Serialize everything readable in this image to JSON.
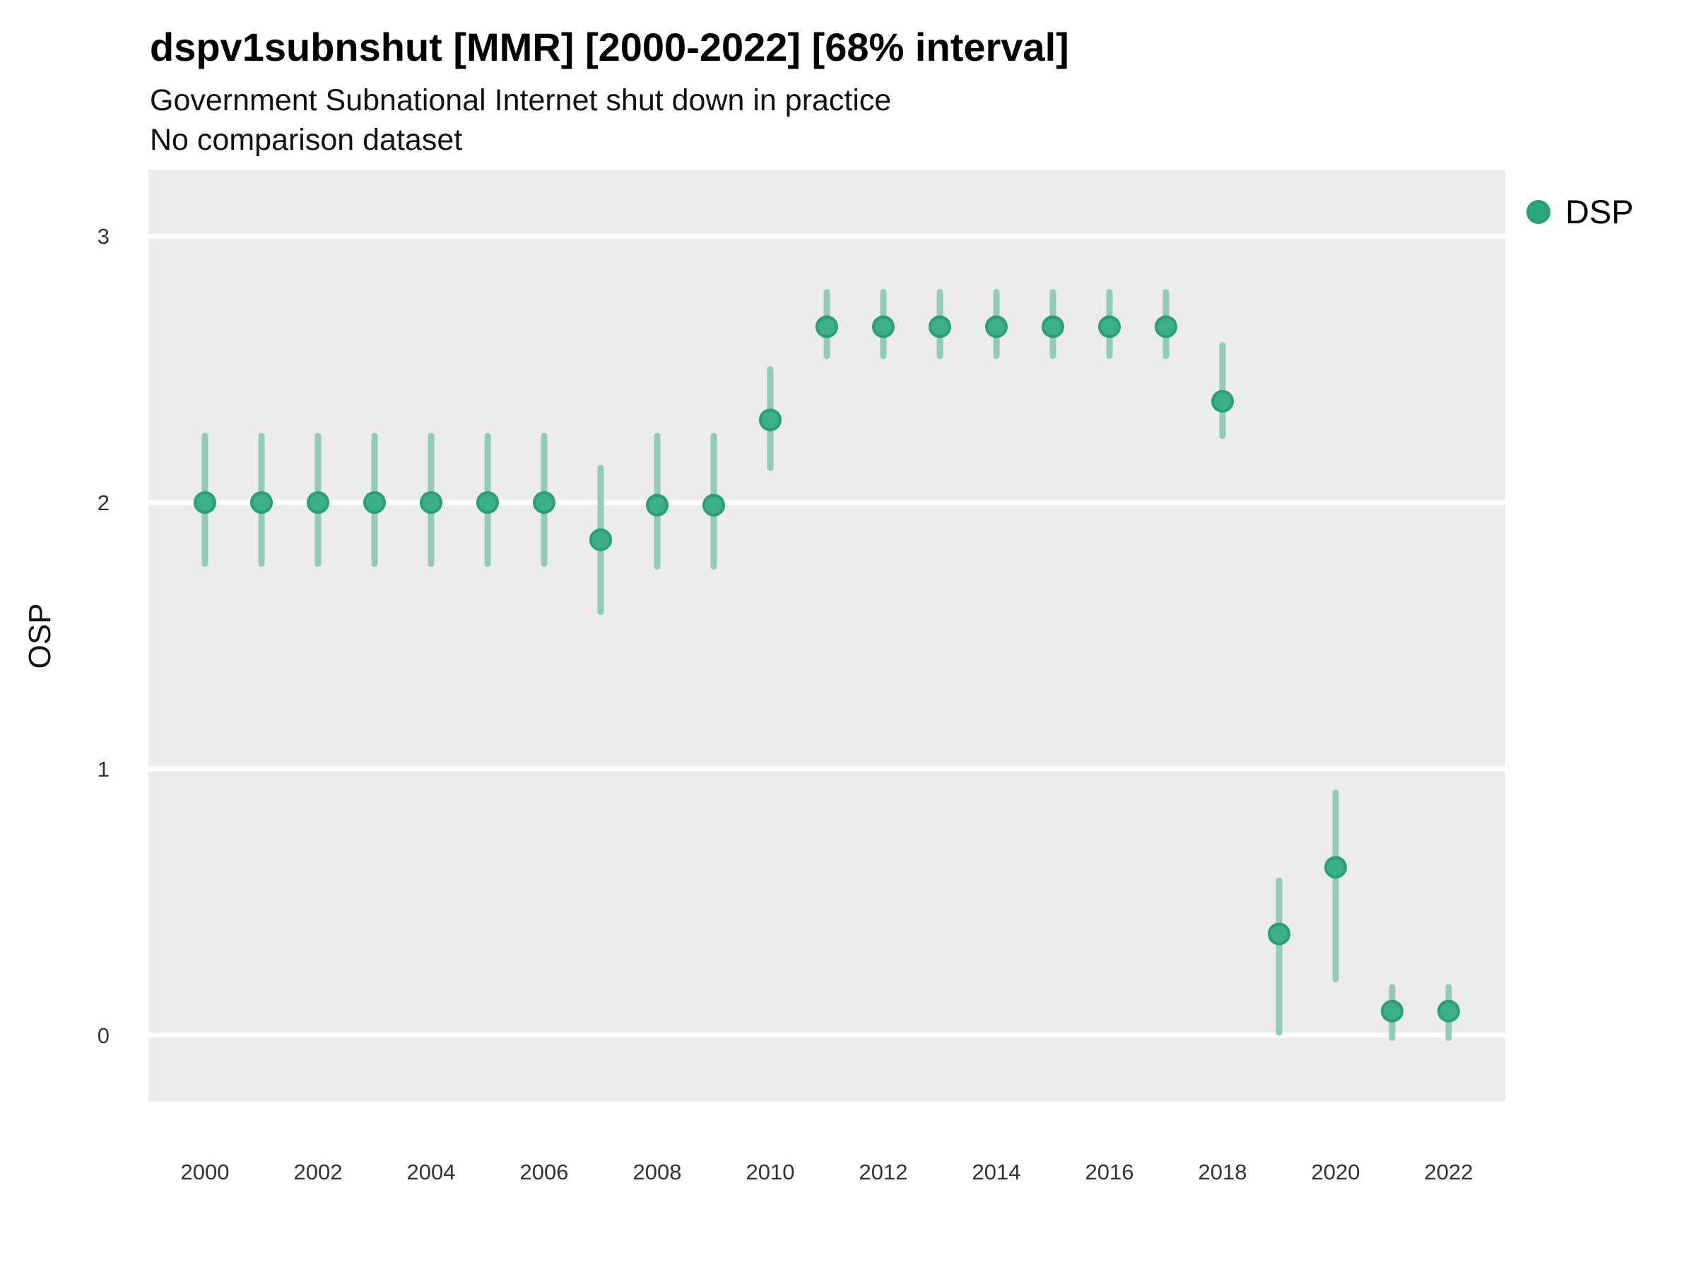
{
  "page": {
    "title": "dspv1subnshut [MMR] [2000-2022] [68% interval]",
    "subtitle1": "Government Subnational Internet shut down in practice",
    "subtitle2": "No comparison dataset"
  },
  "legend": {
    "label": "DSP"
  },
  "chart_data": {
    "type": "scatter",
    "title": "dspv1subnshut [MMR] [2000-2022] [68% interval]",
    "subtitle": "Government Subnational Internet shut down in practice",
    "note": "No comparison dataset",
    "interval_level": "68%",
    "xlabel": "",
    "ylabel": "OSP",
    "xlim": [
      1999,
      2023
    ],
    "ylim": [
      -0.25,
      3.25
    ],
    "x_ticks": [
      2000,
      2002,
      2004,
      2006,
      2008,
      2010,
      2012,
      2014,
      2016,
      2018,
      2020,
      2022
    ],
    "y_ticks": [
      0,
      1,
      2,
      3
    ],
    "grid": "major horizontal white lines on grey panel",
    "legend_position": "right-top",
    "series": [
      {
        "name": "DSP",
        "x": [
          2000,
          2001,
          2002,
          2003,
          2004,
          2005,
          2006,
          2007,
          2008,
          2009,
          2010,
          2011,
          2012,
          2013,
          2014,
          2015,
          2016,
          2017,
          2018,
          2019,
          2020,
          2021,
          2022
        ],
        "values": [
          2.0,
          2.0,
          2.0,
          2.0,
          2.0,
          2.0,
          2.0,
          1.86,
          1.99,
          1.99,
          2.31,
          2.66,
          2.66,
          2.66,
          2.66,
          2.66,
          2.66,
          2.66,
          2.38,
          0.38,
          0.63,
          0.09,
          0.09
        ],
        "interval_low": [
          1.77,
          1.77,
          1.77,
          1.77,
          1.77,
          1.77,
          1.77,
          1.59,
          1.76,
          1.76,
          2.13,
          2.55,
          2.55,
          2.55,
          2.55,
          2.55,
          2.55,
          2.55,
          2.25,
          0.01,
          0.21,
          -0.01,
          -0.01
        ],
        "interval_high": [
          2.25,
          2.25,
          2.25,
          2.25,
          2.25,
          2.25,
          2.25,
          2.13,
          2.25,
          2.25,
          2.5,
          2.79,
          2.79,
          2.79,
          2.79,
          2.79,
          2.79,
          2.79,
          2.59,
          0.58,
          0.91,
          0.18,
          0.18
        ]
      }
    ],
    "colors": {
      "point_fill": "#3cae88",
      "point_stroke": "#27a075",
      "interval_bar": "#93ccb4",
      "panel_bg": "#ebebeb",
      "grid_line": "#ffffff",
      "legend_dot": "#2ba77d"
    }
  }
}
